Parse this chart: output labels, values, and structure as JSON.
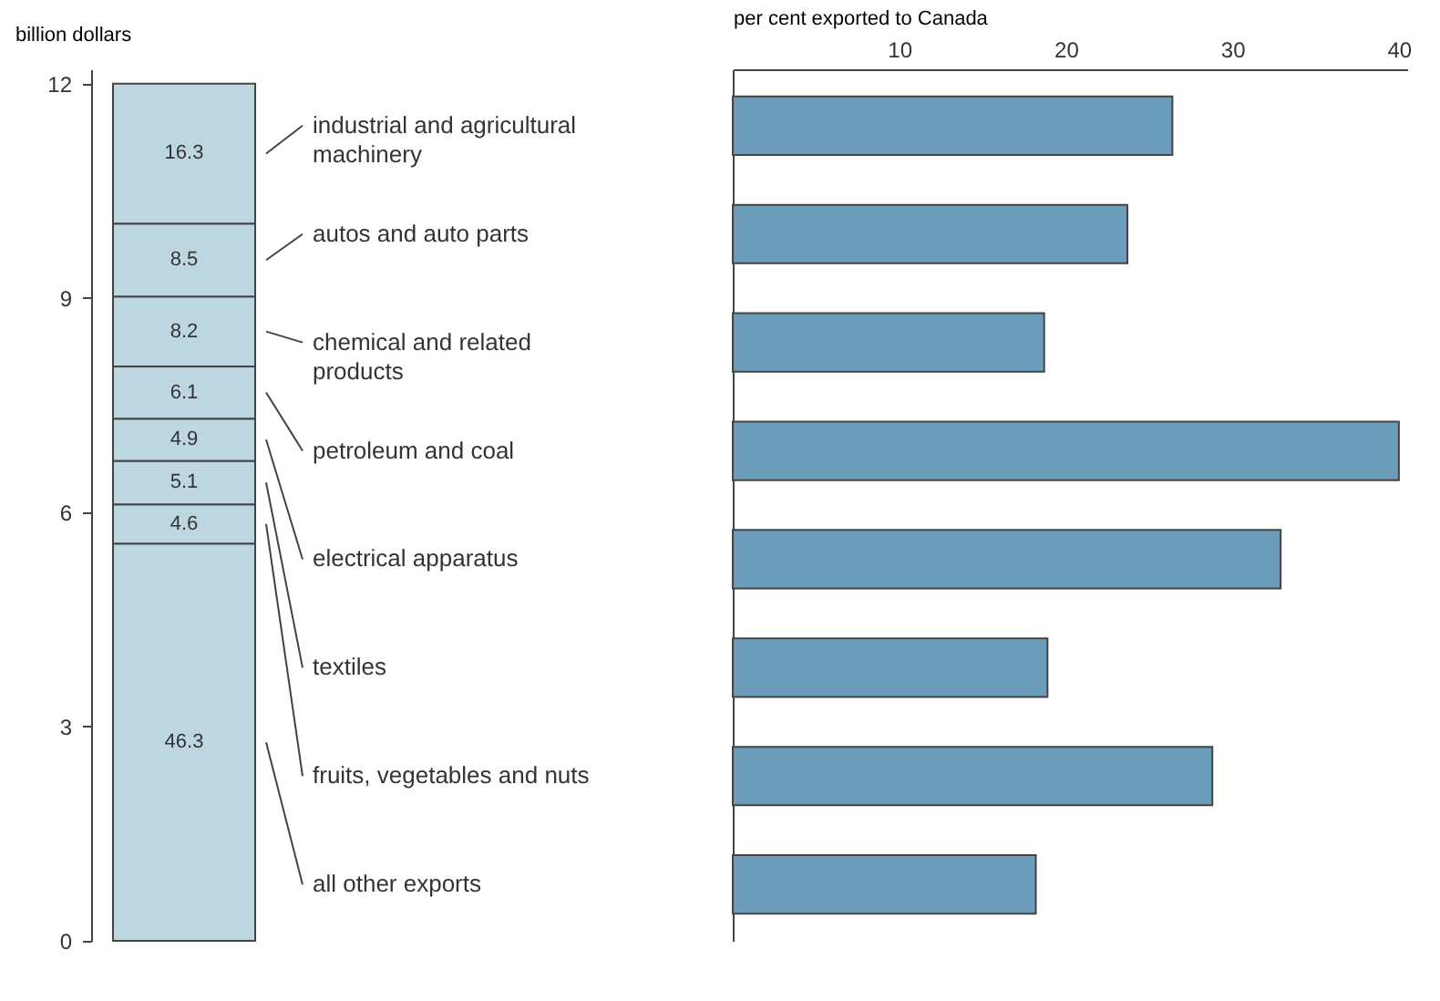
{
  "chart_data": [
    {
      "type": "bar",
      "ylabel": "billion dollars",
      "categories": [
        null
      ],
      "stacked": true,
      "ylim": [
        0,
        12.2
      ],
      "yticks": [
        0,
        3,
        6,
        9,
        12
      ],
      "series": [
        {
          "color": "#bdd7e0",
          "values": [
            5.56
          ]
        },
        {
          "color": "#bdd7e0",
          "values": [
            0.55
          ]
        },
        {
          "color": "#bdd7e0",
          "values": [
            0.61
          ]
        },
        {
          "color": "#bdd7e0",
          "values": [
            0.59
          ]
        },
        {
          "color": "#bdd7e0",
          "values": [
            0.73
          ]
        },
        {
          "color": "#bdd7e0",
          "values": [
            0.98
          ]
        },
        {
          "color": "#bdd7e0",
          "values": [
            1.02
          ]
        },
        {
          "color": "#bdd7e0",
          "values": [
            1.96
          ]
        }
      ],
      "annotations": [
        "46.3",
        "4.6",
        "5.1",
        "4.9",
        "6.1",
        "8.2",
        "8.5",
        "16.3"
      ]
    },
    {
      "type": "bar",
      "orientation": "horizontal",
      "xlabel": "per cent exported to Canada",
      "categories": [
        "industrial and agricultural machinery",
        "autos and auto parts",
        "chemical and related products",
        "petroleum and coal",
        "electrical apparatus",
        "textiles",
        "fruits, vegetables and nuts",
        "all other exports"
      ],
      "values": [
        26.4,
        23.7,
        18.7,
        40,
        32.9,
        18.9,
        28.8,
        18.2
      ],
      "color": "#6b9dba",
      "xlim": [
        0,
        40.5
      ],
      "xticks": [
        10,
        20,
        30,
        40
      ]
    }
  ]
}
